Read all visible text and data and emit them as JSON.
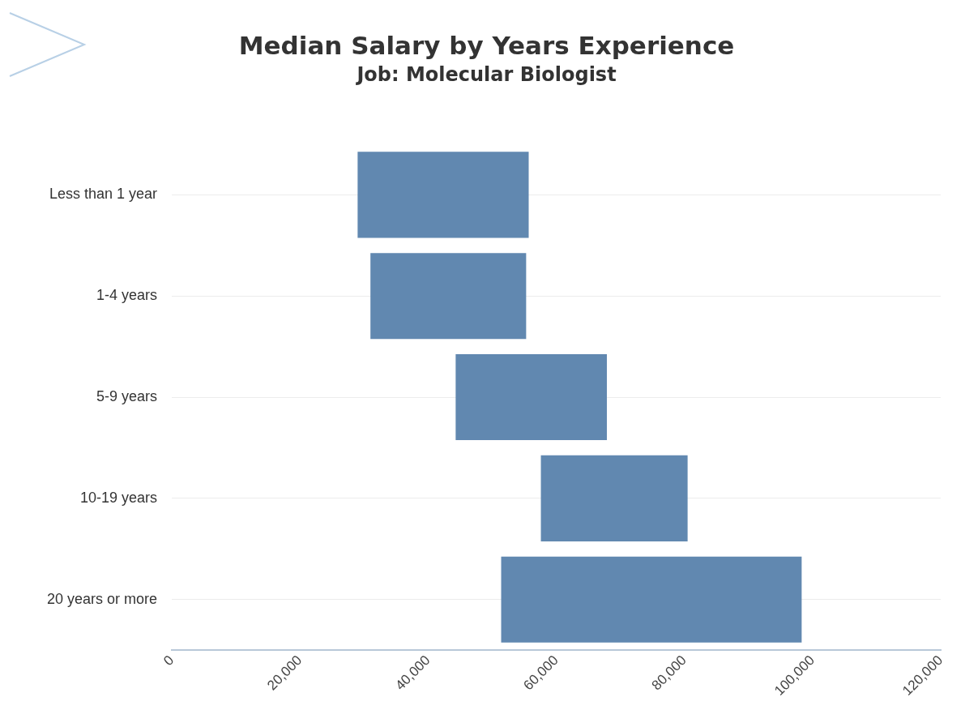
{
  "chart_data": {
    "type": "bar",
    "orientation": "horizontal",
    "title": "Median Salary by Years Experience",
    "subtitle": "Job: Molecular Biologist",
    "categories": [
      "Less than 1 year",
      "1-4 years",
      "5-9 years",
      "10-19 years",
      "20 years or more"
    ],
    "base": [
      29000,
      31000,
      44300,
      57600,
      51400
    ],
    "values": [
      26700,
      24300,
      23600,
      22900,
      46900
    ],
    "color": "#6188b0",
    "xlim": [
      0,
      120000
    ],
    "xticks": [
      0,
      {
        "value": 20000,
        "label": "20,000"
      },
      {
        "value": 40000,
        "label": "40,000"
      },
      {
        "value": 60000,
        "label": "60,000"
      },
      {
        "value": 80000,
        "label": "80,000"
      },
      {
        "value": 100000,
        "label": "100,000"
      },
      {
        "value": 120000,
        "label": "120,000"
      }
    ],
    "grid": "y",
    "legend": false
  }
}
